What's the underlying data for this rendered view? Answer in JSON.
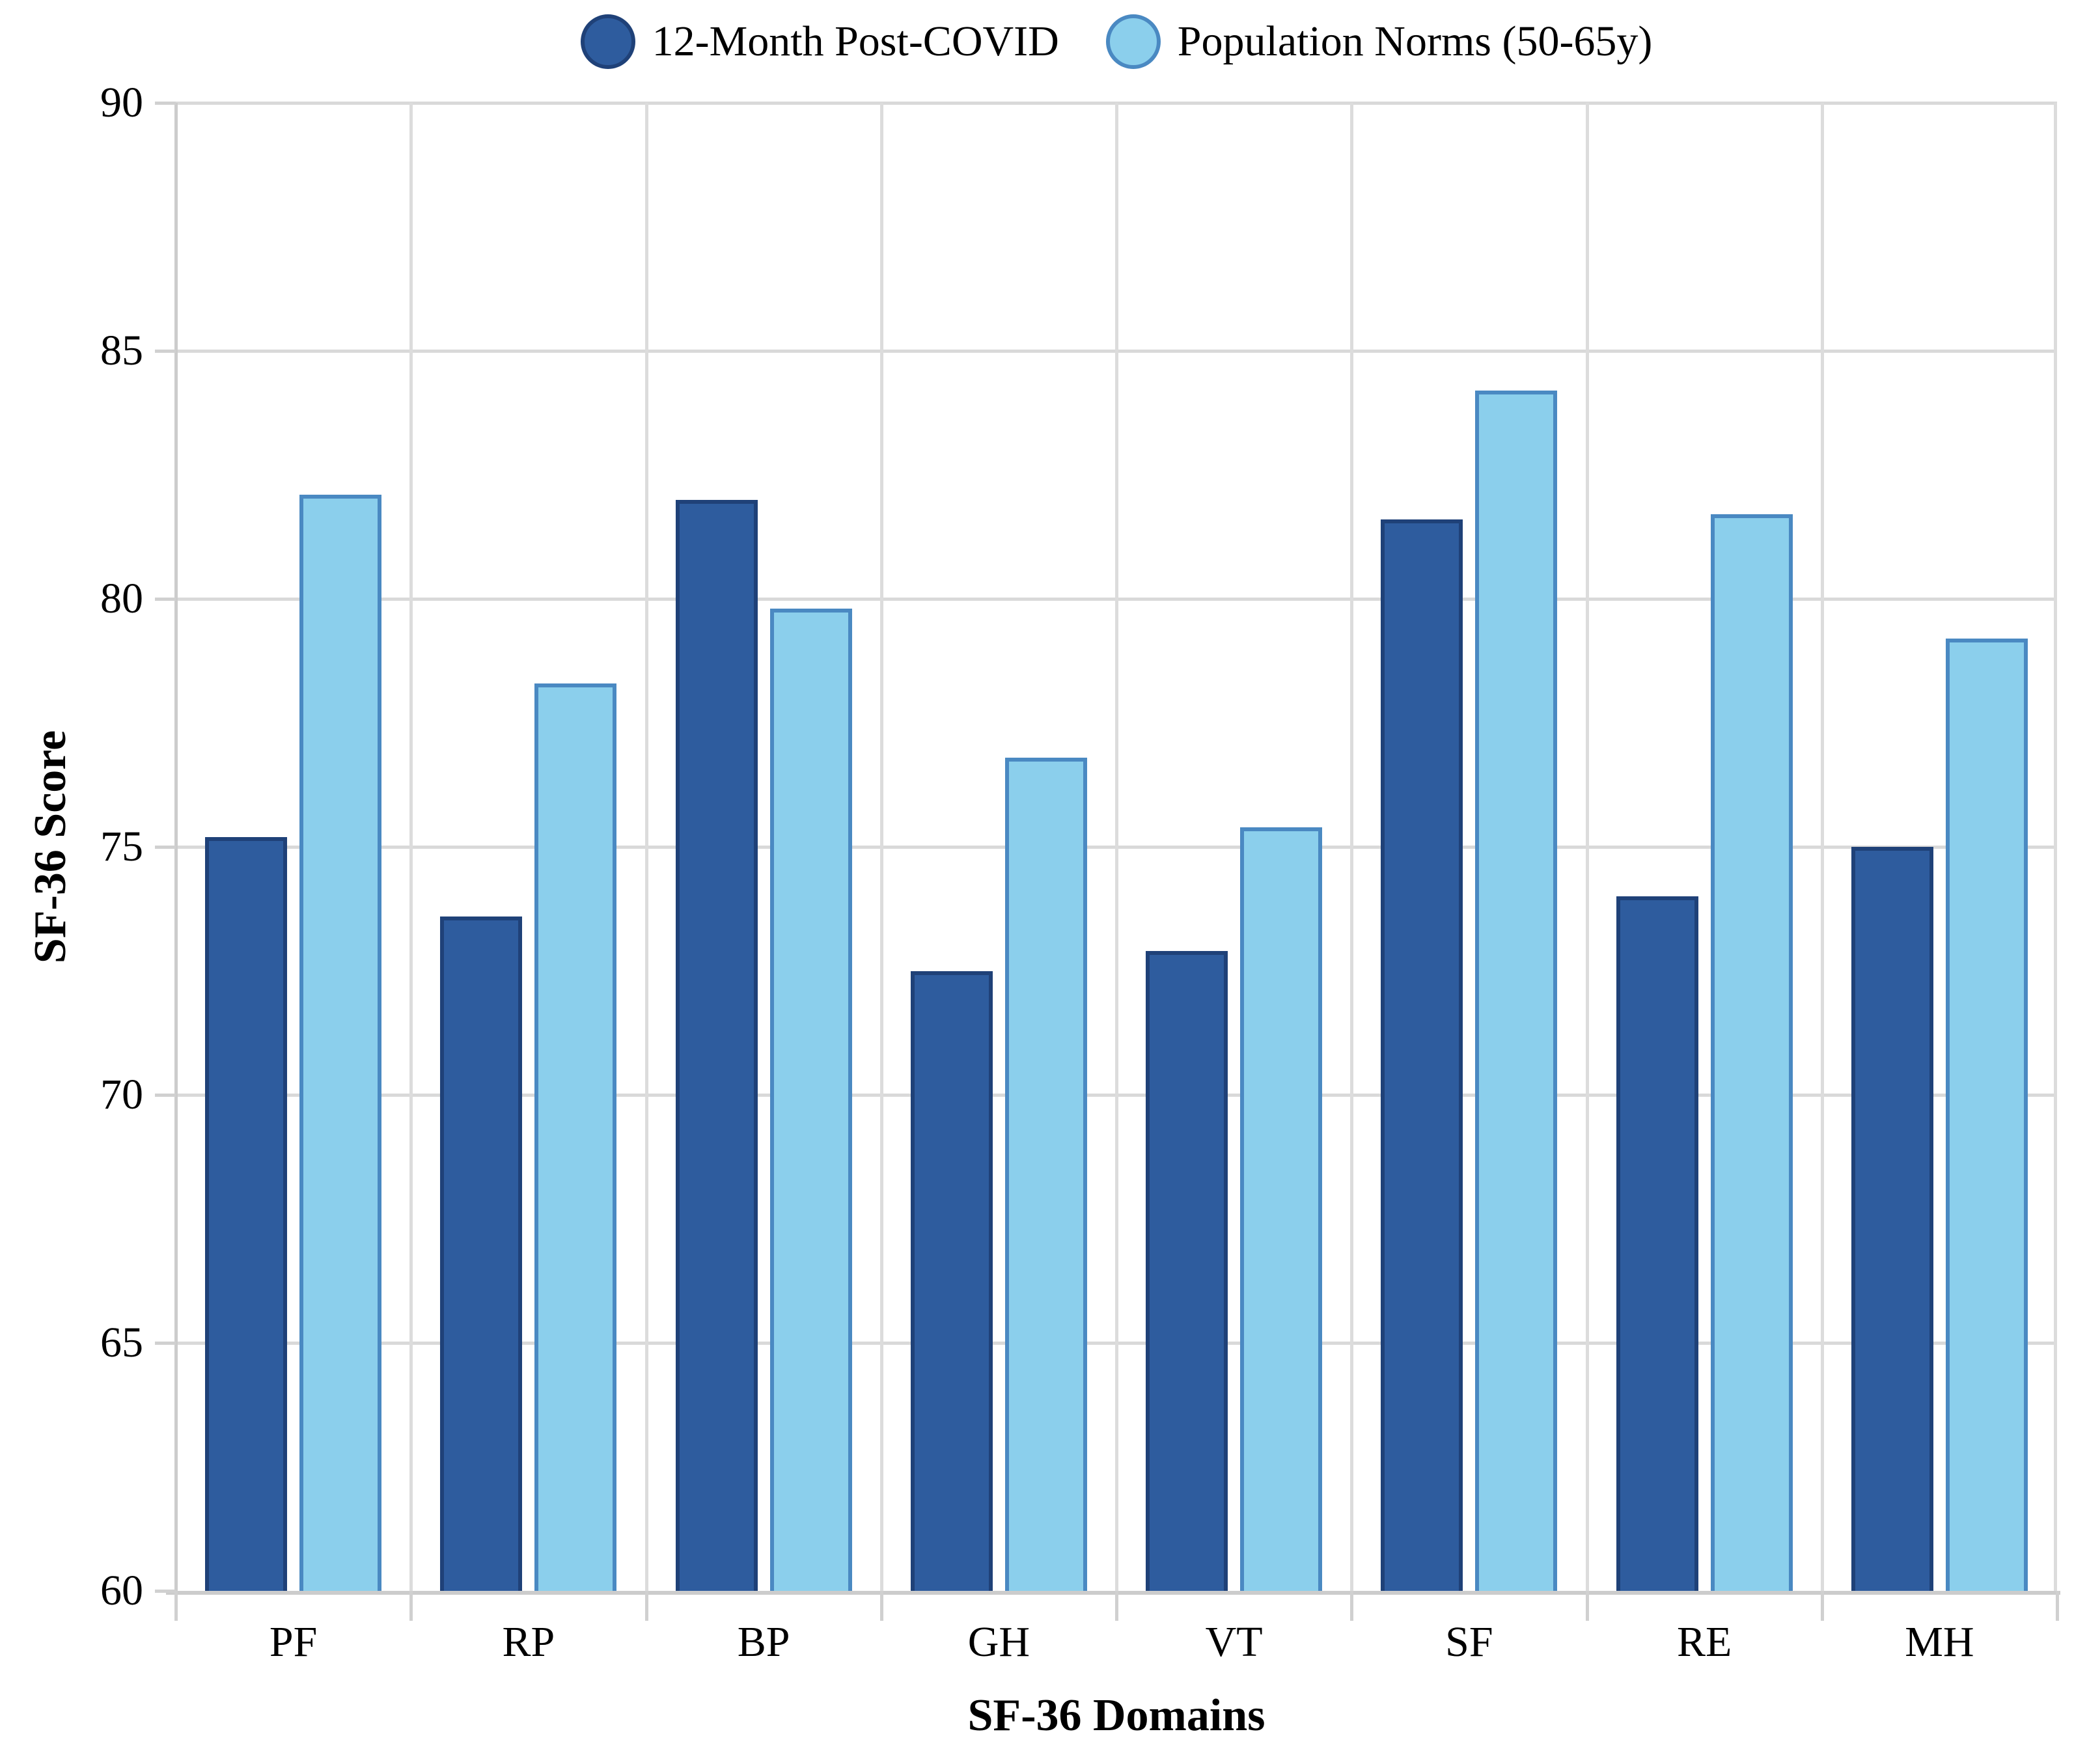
{
  "colors": {
    "background": "#ffffff",
    "gridline": "#d9d9d9",
    "axis_line": "#cccccc",
    "text": "#000000",
    "series_dark_fill": "#2e5c9e",
    "series_dark_stroke": "#1f4178",
    "series_light_fill": "#8bcfec",
    "series_light_stroke": "#4a89c2"
  },
  "chart_data": {
    "type": "bar",
    "title": "",
    "xlabel": "SF-36 Domains",
    "ylabel": "SF-36 Score",
    "categories": [
      "PF",
      "RP",
      "BP",
      "GH",
      "VT",
      "SF",
      "RE",
      "MH"
    ],
    "series": [
      {
        "name": "12-Month Post-COVID",
        "values": [
          75.2,
          73.6,
          82.0,
          72.5,
          72.9,
          81.6,
          74.0,
          75.0
        ],
        "fill": "#2e5c9e",
        "stroke": "#1f4178",
        "marker": "circle-icon"
      },
      {
        "name": "Population Norms (50-65y)",
        "values": [
          82.1,
          78.3,
          79.8,
          76.8,
          75.4,
          84.2,
          81.7,
          79.2
        ],
        "fill": "#8bcfec",
        "stroke": "#4a89c2",
        "marker": "circle-icon"
      }
    ],
    "ylim": [
      60,
      90
    ],
    "yticks": [
      60,
      65,
      70,
      75,
      80,
      85,
      90
    ],
    "grid": true,
    "legend_position": "top"
  }
}
